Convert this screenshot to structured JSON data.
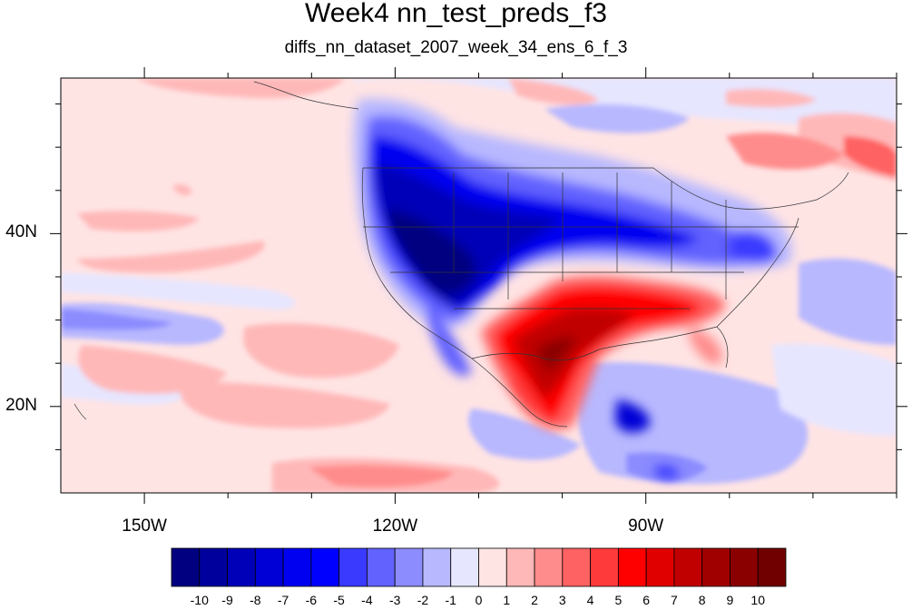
{
  "title": "Week4 nn_test_preds_f3",
  "subtitle": "diffs_nn_dataset_2007_week_34_ens_6_f_3",
  "axes": {
    "x_ticks": [
      {
        "value": -150,
        "label": "150W"
      },
      {
        "value": -120,
        "label": "120W"
      },
      {
        "value": -90,
        "label": "90W"
      }
    ],
    "y_ticks": [
      {
        "value": 40,
        "label": "40N"
      },
      {
        "value": 20,
        "label": "20N"
      }
    ],
    "lon_range": [
      -160,
      -60
    ],
    "lat_range": [
      10,
      58
    ]
  },
  "colorbar": {
    "labels": [
      "-10",
      "-9",
      "-8",
      "-7",
      "-6",
      "-5",
      "-4",
      "-3",
      "-2",
      "-1",
      "0",
      "1",
      "2",
      "3",
      "4",
      "5",
      "6",
      "7",
      "8",
      "9",
      "10"
    ],
    "colors": [
      "#000080",
      "#00009c",
      "#0000b8",
      "#0000d6",
      "#0000f0",
      "#0000ff",
      "#3a3aff",
      "#6262ff",
      "#8c8cff",
      "#b8b8ff",
      "#e6e6ff",
      "#ffe4e4",
      "#ffb8b8",
      "#ff8c8c",
      "#ff6262",
      "#ff3a3a",
      "#ff0000",
      "#e00000",
      "#c00000",
      "#a00000",
      "#8a0000",
      "#700000"
    ]
  },
  "colors": {
    "background_field": "#ffe4e4"
  }
}
